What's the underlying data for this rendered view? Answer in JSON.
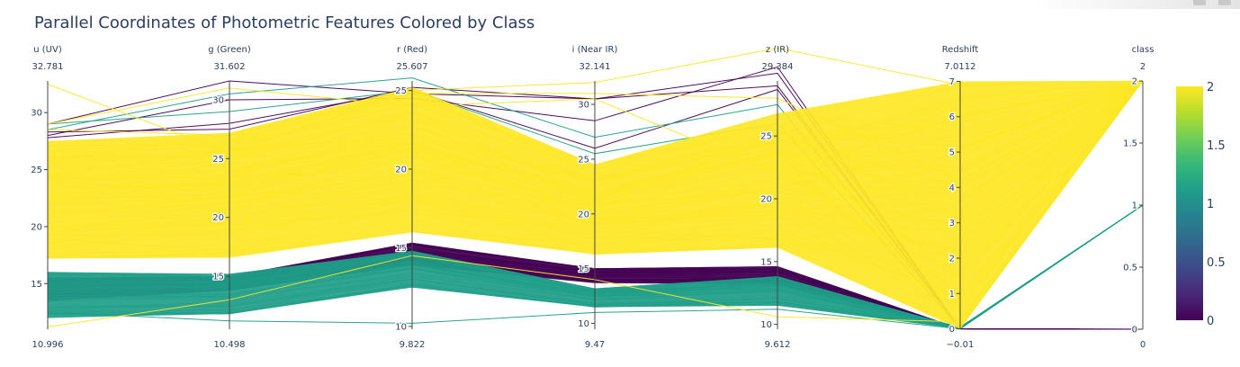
{
  "title": "Parallel Coordinates of Photometric Features Colored by Class",
  "colors": {
    "viridis": [
      "#440154",
      "#482878",
      "#3e4989",
      "#31688e",
      "#26828e",
      "#1f9e89",
      "#35b779",
      "#6ece58",
      "#b5de2b",
      "#fde725"
    ],
    "axis_line": "#444444",
    "text": "#2a3f5f"
  },
  "chart_data": {
    "type": "parallel_coordinates",
    "color_by": "class",
    "colorscale": "viridis",
    "dimensions": [
      {
        "label": "u (UV)",
        "range": [
          10.996,
          32.781
        ],
        "range_labels": [
          "10.996",
          "32.781"
        ],
        "ticks": [
          15,
          20,
          25,
          30
        ]
      },
      {
        "label": "g (Green)",
        "range": [
          10.498,
          31.602
        ],
        "range_labels": [
          "10.498",
          "31.602"
        ],
        "ticks": [
          15,
          20,
          25,
          30
        ]
      },
      {
        "label": "r (Red)",
        "range": [
          9.822,
          25.607
        ],
        "range_labels": [
          "9.822",
          "25.607"
        ],
        "ticks": [
          10,
          15,
          20,
          25
        ]
      },
      {
        "label": "i (Near IR)",
        "range": [
          9.47,
          32.141
        ],
        "range_labels": [
          "9.47",
          "32.141"
        ],
        "ticks": [
          10,
          15,
          20,
          25,
          30
        ]
      },
      {
        "label": "z (IR)",
        "range": [
          9.612,
          29.384
        ],
        "range_labels": [
          "9.612",
          "29.384"
        ],
        "ticks": [
          10,
          15,
          20,
          25
        ]
      },
      {
        "label": "Redshift",
        "range": [
          -0.01,
          7.0112
        ],
        "range_labels": [
          "−0.01",
          "7.0112"
        ],
        "ticks": [
          0,
          1,
          2,
          3,
          4,
          5,
          6,
          7
        ]
      },
      {
        "label": "class",
        "range": [
          0,
          2
        ],
        "range_labels": [
          "0",
          "2"
        ],
        "ticks": [
          0,
          0.5,
          1,
          1.5,
          2
        ]
      }
    ],
    "colorbar": {
      "range": [
        0,
        2
      ],
      "ticks": [
        0,
        0.5,
        1,
        1.5,
        2
      ]
    },
    "classes": [
      {
        "class": 2,
        "band": [
          [
            17.2,
            27.5
          ],
          [
            16.6,
            27.2
          ],
          [
            16.0,
            25.2
          ],
          [
            16.3,
            24.5
          ],
          [
            16.1,
            26.8
          ]
        ],
        "redshift_range": [
          0,
          7.0
        ],
        "outliers": [
          [
            32.5,
            25.5,
            25.0,
            32.0,
            32.0,
            6.9
          ],
          [
            11.2,
            13.0,
            14.5,
            14.0,
            10.6,
            0.2
          ],
          [
            29.0,
            31.0,
            24.0,
            30.5,
            22.0,
            6.0
          ],
          [
            28.5,
            27.0,
            24.8,
            31.0,
            28.0,
            4.2
          ]
        ]
      },
      {
        "class": 1,
        "band": [
          [
            12.0,
            16.0
          ],
          [
            11.8,
            15.2
          ],
          [
            12.5,
            14.8
          ],
          [
            11.5,
            13.2
          ],
          [
            11.5,
            13.8
          ]
        ],
        "redshift_range": [
          0,
          0.05
        ],
        "outliers": [
          [
            28.5,
            30.5,
            25.8,
            27.0,
            27.5,
            0.02
          ],
          [
            29.0,
            29.0,
            25.0,
            25.5,
            26.0,
            0.01
          ],
          [
            12.5,
            11.2,
            10.2,
            11.0,
            11.2,
            0.0
          ]
        ]
      },
      {
        "class": 0,
        "band": [
          [
            13.5,
            15.5
          ],
          [
            13.8,
            15.0
          ],
          [
            13.9,
            15.3
          ],
          [
            13.7,
            15.0
          ],
          [
            13.2,
            14.6
          ]
        ],
        "redshift_range": [
          0,
          0.0
        ],
        "outliers": [
          [
            29.0,
            31.6,
            24.8,
            30.5,
            30.0,
            0.0
          ],
          [
            28.3,
            27.5,
            25.2,
            30.5,
            29.0,
            0.0
          ],
          [
            28.0,
            30.0,
            24.5,
            28.5,
            30.5,
            0.0
          ],
          [
            27.8,
            28.0,
            25.0,
            26.0,
            28.7,
            0.0
          ]
        ]
      }
    ]
  }
}
